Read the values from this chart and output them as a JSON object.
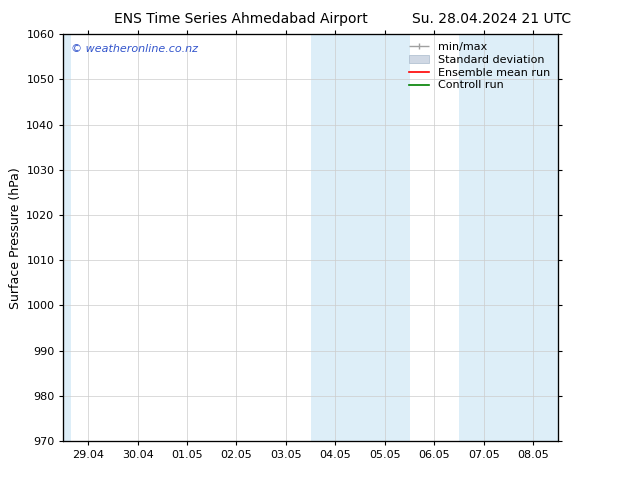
{
  "title_left": "ENS Time Series Ahmedabad Airport",
  "title_right": "Su. 28.04.2024 21 UTC",
  "ylabel": "Surface Pressure (hPa)",
  "ylim": [
    970,
    1060
  ],
  "yticks": [
    970,
    980,
    990,
    1000,
    1010,
    1020,
    1030,
    1040,
    1050,
    1060
  ],
  "xtick_labels": [
    "29.04",
    "30.04",
    "01.05",
    "02.05",
    "03.05",
    "04.05",
    "05.05",
    "06.05",
    "07.05",
    "08.05"
  ],
  "xtick_positions": [
    0,
    1,
    2,
    3,
    4,
    5,
    6,
    7,
    8,
    9
  ],
  "shaded_regions": [
    {
      "xmin": 4.5,
      "xmax": 6.5,
      "color": "#ddeef8"
    },
    {
      "xmin": 7.5,
      "xmax": 9.6,
      "color": "#ddeef8"
    }
  ],
  "left_strip": {
    "xmin": -0.5,
    "xmax": -0.35,
    "color": "#ddeef8"
  },
  "legend_entries": [
    {
      "label": "min/max",
      "color": "#a0a0a0",
      "type": "line_with_caps"
    },
    {
      "label": "Standard deviation",
      "color": "#d0d8e4",
      "type": "rect"
    },
    {
      "label": "Ensemble mean run",
      "color": "red",
      "type": "line"
    },
    {
      "label": "Controll run",
      "color": "green",
      "type": "line"
    }
  ],
  "watermark": "© weatheronline.co.nz",
  "watermark_color": "#3355cc",
  "background_color": "#ffffff",
  "plot_bg_color": "#ffffff",
  "title_fontsize": 10,
  "axis_fontsize": 9,
  "tick_fontsize": 8,
  "legend_fontsize": 8
}
